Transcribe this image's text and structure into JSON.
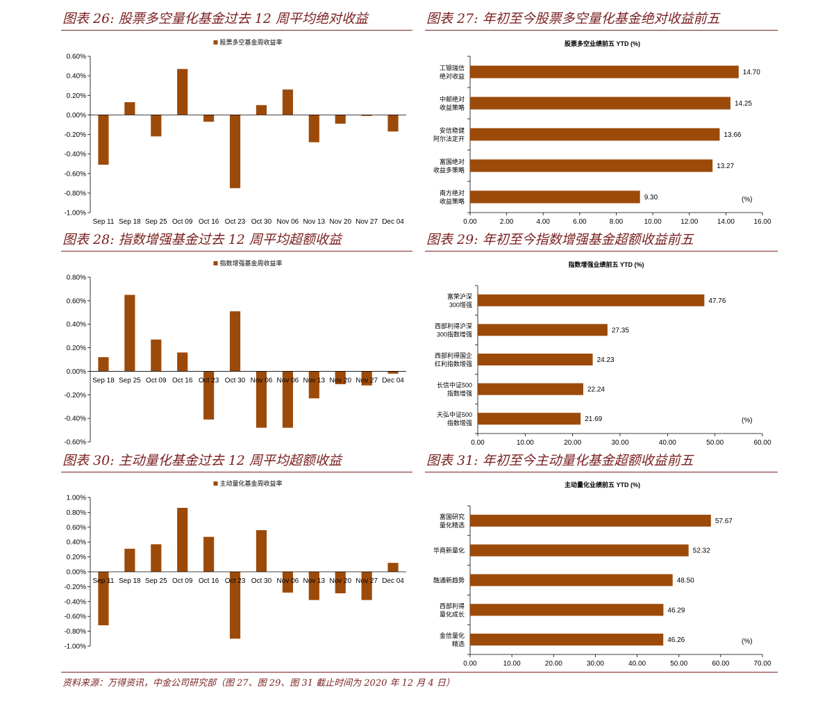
{
  "titles": [
    "图表 26:  股票多空量化基金过去 12 周平均绝对收益",
    "图表 27:  年初至今股票多空量化基金绝对收益前五",
    "图表 28:  指数增强基金过去 12 周平均超额收益",
    "图表 29:  年初至今指数增强基金超额收益前五",
    "图表 30:  主动量化基金过去 12 周平均超额收益",
    "图表 31:  年初至今主动量化基金超额收益前五"
  ],
  "source": "资料来源：万得资讯，中金公司研究部（图 27、图 29、图 31 截止时间为 2020 年 12 月 4 日）",
  "colors": {
    "bar": "#9c4a0a",
    "title": "#7a1f1f"
  },
  "chart_data": [
    {
      "type": "bar",
      "title": "",
      "legend": "股票多空基金周收益率",
      "legend_position": "top-center",
      "categories": [
        "Sep 11",
        "Sep 18",
        "Sep 25",
        "Oct 09",
        "Oct 16",
        "Oct 23",
        "Oct 30",
        "Nov 06",
        "Nov 13",
        "Nov 20",
        "Nov 27",
        "Dec 04"
      ],
      "values": [
        -0.51,
        0.13,
        -0.22,
        0.47,
        -0.07,
        -0.75,
        0.1,
        0.26,
        -0.28,
        -0.09,
        -0.01,
        -0.17
      ],
      "ylim": [
        -1.0,
        0.6
      ],
      "yticks": [
        "0.60%",
        "0.40%",
        "0.20%",
        "0.00%",
        "-0.20%",
        "-0.40%",
        "-0.60%",
        "-0.80%",
        "-1.00%"
      ],
      "ytick_values": [
        0.6,
        0.4,
        0.2,
        0.0,
        -0.2,
        -0.4,
        -0.6,
        -0.8,
        -1.0
      ],
      "category_labels_position": "bottom"
    },
    {
      "type": "bar",
      "orientation": "horizontal",
      "title": "股票多空业绩前五 YTD (%)",
      "unit_label": "(%)",
      "categories": [
        [
          "工银瑞信",
          "绝对收益"
        ],
        [
          "中邮绝对",
          "收益策略"
        ],
        [
          "安信稳健",
          "阿尔法定开"
        ],
        [
          "富国绝对",
          "收益多策略"
        ],
        [
          "南方绝对",
          "收益策略"
        ]
      ],
      "values": [
        14.7,
        14.25,
        13.66,
        13.27,
        9.3
      ],
      "value_labels": [
        "14.70",
        "14.25",
        "13.66",
        "13.27",
        "9.30"
      ],
      "xlim": [
        0,
        16
      ],
      "xticks": [
        "0.00",
        "2.00",
        "4.00",
        "6.00",
        "8.00",
        "10.00",
        "12.00",
        "14.00",
        "16.00"
      ],
      "xtick_values": [
        0,
        2,
        4,
        6,
        8,
        10,
        12,
        14,
        16
      ]
    },
    {
      "type": "bar",
      "title": "",
      "legend": "指数增强基金周收益率",
      "legend_position": "top-center",
      "categories": [
        "Sep 18",
        "Sep 25",
        "Oct 09",
        "Oct 16",
        "Oct 23",
        "Oct 30",
        "Nov 06",
        "Nov 06",
        "Nov 13",
        "Nov 20",
        "Nov 27",
        "Dec 04"
      ],
      "values": [
        0.12,
        0.65,
        0.27,
        0.16,
        -0.41,
        0.51,
        -0.48,
        -0.48,
        -0.23,
        -0.11,
        -0.12,
        -0.02
      ],
      "ylim": [
        -0.6,
        0.8
      ],
      "yticks": [
        "0.80%",
        "0.60%",
        "0.40%",
        "0.20%",
        "0.00%",
        "-0.20%",
        "-0.40%",
        "-0.60%"
      ],
      "ytick_values": [
        0.8,
        0.6,
        0.4,
        0.2,
        0.0,
        -0.2,
        -0.4,
        -0.6
      ],
      "category_labels_position": "at-zero"
    },
    {
      "type": "bar",
      "orientation": "horizontal",
      "title": "指数增强业绩前五 YTD (%)",
      "unit_label": "(%)",
      "categories": [
        [
          "富荣沪深",
          "300增强"
        ],
        [
          "西部利得沪深",
          "300指数增强"
        ],
        [
          "西部利得国企",
          "红利指数增强"
        ],
        [
          "长信中证500",
          "指数增强"
        ],
        [
          "天弘中证500",
          "指数增强"
        ]
      ],
      "values": [
        47.76,
        27.35,
        24.23,
        22.24,
        21.69
      ],
      "value_labels": [
        "47.76",
        "27.35",
        "24.23",
        "22.24",
        "21.69"
      ],
      "xlim": [
        0,
        60
      ],
      "xticks": [
        "0.00",
        "10.00",
        "20.00",
        "30.00",
        "40.00",
        "50.00",
        "60.00"
      ],
      "xtick_values": [
        0,
        10,
        20,
        30,
        40,
        50,
        60
      ]
    },
    {
      "type": "bar",
      "title": "",
      "legend": "主动量化基金周收益率",
      "legend_position": "top-center",
      "categories": [
        "Sep 11",
        "Sep 18",
        "Sep 25",
        "Oct 09",
        "Oct 16",
        "Oct 23",
        "Oct 30",
        "Nov 06",
        "Nov 13",
        "Nov 20",
        "Nov 27",
        "Dec 04"
      ],
      "values": [
        -0.72,
        0.31,
        0.37,
        0.86,
        0.47,
        -0.9,
        0.56,
        -0.28,
        -0.38,
        -0.29,
        -0.38,
        0.12
      ],
      "ylim": [
        -1.0,
        1.0
      ],
      "yticks": [
        "1.00%",
        "0.80%",
        "0.60%",
        "0.40%",
        "0.20%",
        "0.00%",
        "-0.20%",
        "-0.40%",
        "-0.60%",
        "-0.80%",
        "-1.00%"
      ],
      "ytick_values": [
        1.0,
        0.8,
        0.6,
        0.4,
        0.2,
        0.0,
        -0.2,
        -0.4,
        -0.6,
        -0.8,
        -1.0
      ],
      "category_labels_position": "at-zero"
    },
    {
      "type": "bar",
      "orientation": "horizontal",
      "title": "主动量化业绩前五 YTD (%)",
      "unit_label": "(%)",
      "categories": [
        [
          "富国研究",
          "量化精选"
        ],
        [
          "华商新量化"
        ],
        [
          "融通新趋势"
        ],
        [
          "西部利得",
          "量化成长"
        ],
        [
          "金信量化",
          "精选"
        ]
      ],
      "values": [
        57.67,
        52.32,
        48.5,
        46.29,
        46.26
      ],
      "value_labels": [
        "57.67",
        "52.32",
        "48.50",
        "46.29",
        "46.26"
      ],
      "xlim": [
        0,
        70
      ],
      "xticks": [
        "0.00",
        "10.00",
        "20.00",
        "30.00",
        "40.00",
        "50.00",
        "60.00",
        "70.00"
      ],
      "xtick_values": [
        0,
        10,
        20,
        30,
        40,
        50,
        60,
        70
      ]
    }
  ]
}
